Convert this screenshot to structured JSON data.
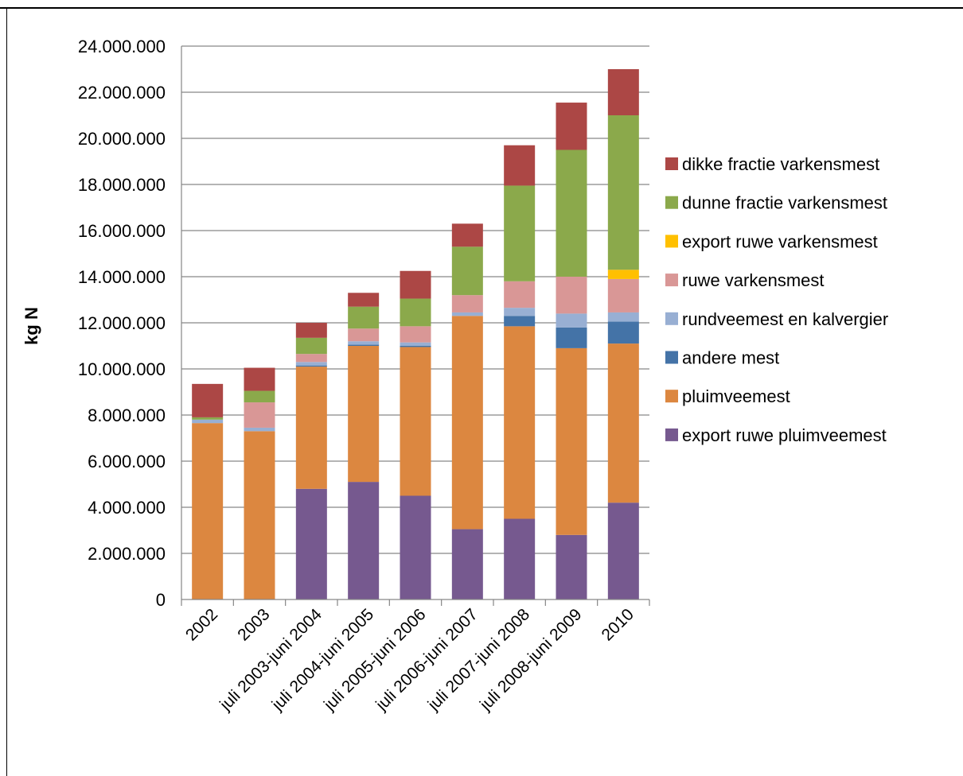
{
  "chart_data": {
    "type": "bar",
    "stacked": true,
    "title": "",
    "xlabel": "",
    "ylabel": "kg N",
    "ylim": [
      0,
      24000000
    ],
    "y_ticks": [
      "0",
      "2.000.000",
      "4.000.000",
      "6.000.000",
      "8.000.000",
      "10.000.000",
      "12.000.000",
      "14.000.000",
      "16.000.000",
      "18.000.000",
      "20.000.000",
      "22.000.000",
      "24.000.000"
    ],
    "grid": true,
    "legend_position": "right",
    "categories": [
      "2002",
      "2003",
      "juli 2003-juni 2004",
      "juli 2004-juni 2005",
      "juli 2005-juni 2006",
      "juli 2006-juni 2007",
      "juli 2007-juni 2008",
      "juli 2008-juni 2009",
      "2010"
    ],
    "series": [
      {
        "name": "export ruwe pluimveemest",
        "color": "#76598F",
        "values": [
          0,
          0,
          4800000,
          5100000,
          4500000,
          3050000,
          3500000,
          2800000,
          4200000
        ]
      },
      {
        "name": "pluimveemest",
        "color": "#DC8740",
        "values": [
          7650000,
          7300000,
          5300000,
          5900000,
          6450000,
          9250000,
          8350000,
          8100000,
          6900000
        ]
      },
      {
        "name": "andere mest",
        "color": "#4473A7",
        "values": [
          0,
          0,
          50000,
          50000,
          50000,
          0,
          450000,
          900000,
          950000
        ]
      },
      {
        "name": "rundveemest en kalvergier",
        "color": "#98AFD3",
        "values": [
          150000,
          150000,
          150000,
          150000,
          150000,
          150000,
          350000,
          600000,
          400000
        ]
      },
      {
        "name": "ruwe varkensmest",
        "color": "#D99796",
        "values": [
          0,
          1100000,
          350000,
          550000,
          700000,
          750000,
          1150000,
          1600000,
          1450000
        ]
      },
      {
        "name": "export ruwe varkensmest",
        "color": "#FFC000",
        "values": [
          0,
          0,
          0,
          0,
          0,
          0,
          0,
          0,
          400000
        ]
      },
      {
        "name": "dunne fractie varkensmest",
        "color": "#8BA94B",
        "values": [
          100000,
          500000,
          700000,
          950000,
          1200000,
          2100000,
          4150000,
          5500000,
          6700000
        ]
      },
      {
        "name": "dikke fractie varkensmest",
        "color": "#AC4745",
        "values": [
          1450000,
          1000000,
          650000,
          600000,
          1200000,
          1000000,
          1750000,
          2050000,
          2000000
        ]
      }
    ],
    "legend_order": [
      "dikke fractie varkensmest",
      "dunne fractie varkensmest",
      "export ruwe varkensmest",
      "ruwe varkensmest",
      "rundveemest en kalvergier",
      "andere mest",
      "pluimveemest",
      "export ruwe pluimveemest"
    ]
  }
}
